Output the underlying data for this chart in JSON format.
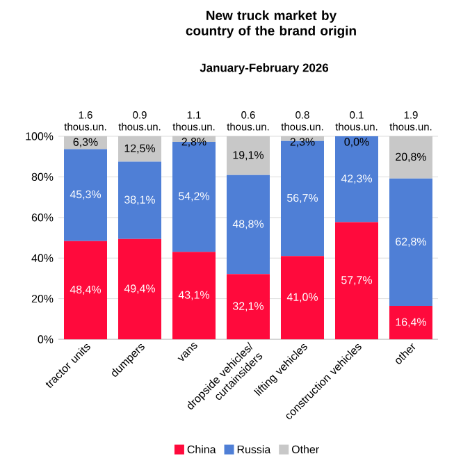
{
  "chart_data": {
    "type": "bar",
    "stacked": true,
    "title": "New truck market by country of the brand origin",
    "subtitle": "January-February 2026",
    "categories": [
      "tractor units",
      "dumpers",
      "vans",
      "dropside vehicles/ curtainsiders",
      "lifting vehicles",
      "construction vehicles",
      "other"
    ],
    "series": [
      {
        "name": "China",
        "color": "#ff0a3c",
        "values": [
          48.4,
          49.4,
          43.1,
          32.1,
          41.0,
          57.7,
          16.4
        ],
        "value_labels": [
          "48,4%",
          "49,4%",
          "43,1%",
          "32,1%",
          "41,0%",
          "57,7%",
          "16,4%"
        ]
      },
      {
        "name": "Russia",
        "color": "#4f7fd6",
        "values": [
          45.3,
          38.1,
          54.2,
          48.8,
          56.7,
          42.3,
          62.8
        ],
        "value_labels": [
          "45,3%",
          "38,1%",
          "54,2%",
          "48,8%",
          "56,7%",
          "42,3%",
          "62,8%"
        ]
      },
      {
        "name": "Other",
        "color": "#c8c8c8",
        "values": [
          6.3,
          12.5,
          2.8,
          19.1,
          2.3,
          0.0,
          20.8
        ],
        "value_labels": [
          "6,3%",
          "12,5%",
          "2,8%",
          "19,1%",
          "2,3%",
          "0,0%",
          "20,8%"
        ]
      }
    ],
    "annotations": [
      {
        "text": "1.6 thous.un.",
        "x": "tractor units",
        "y": 100
      },
      {
        "text": "0.9 thous.un.",
        "x": "dumpers",
        "y": 100
      },
      {
        "text": "1.1 thous.un.",
        "x": "vans",
        "y": 100
      },
      {
        "text": "0.6 thous.un.",
        "x": "dropside vehicles/ curtainsiders",
        "y": 100
      },
      {
        "text": "0.8 thous.un.",
        "x": "lifting vehicles",
        "y": 100
      },
      {
        "text": "0.1 thous.un.",
        "x": "construction vehicles",
        "y": 100
      },
      {
        "text": "1.9 thous.un.",
        "x": "other",
        "y": 100
      }
    ],
    "ylim": [
      0,
      100
    ],
    "yticks": [
      {
        "value": 0,
        "label": "0%"
      },
      {
        "value": 20,
        "label": "20%"
      },
      {
        "value": 40,
        "label": "40%"
      },
      {
        "value": 60,
        "label": "60%"
      },
      {
        "value": 80,
        "label": "80%"
      },
      {
        "value": 100,
        "label": "100%"
      }
    ],
    "grid": "y",
    "legend": "bottom"
  }
}
